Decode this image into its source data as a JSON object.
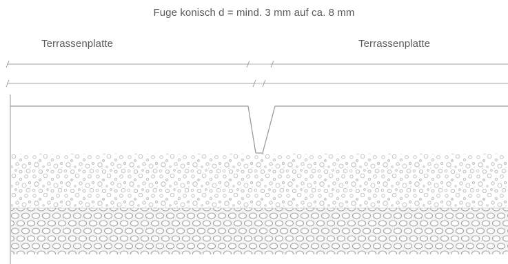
{
  "title": "Fuge konisch d = mind. 3 mm auf ca. 8 mm",
  "labels": {
    "left_slab": "Terrassenplatte",
    "right_slab": "Terrassenplatte"
  },
  "colors": {
    "line": "#9a9a9a",
    "text": "#5a5a5a",
    "gravel_light": "#c4c4c4",
    "gravel_dark": "#9c9c9c"
  }
}
